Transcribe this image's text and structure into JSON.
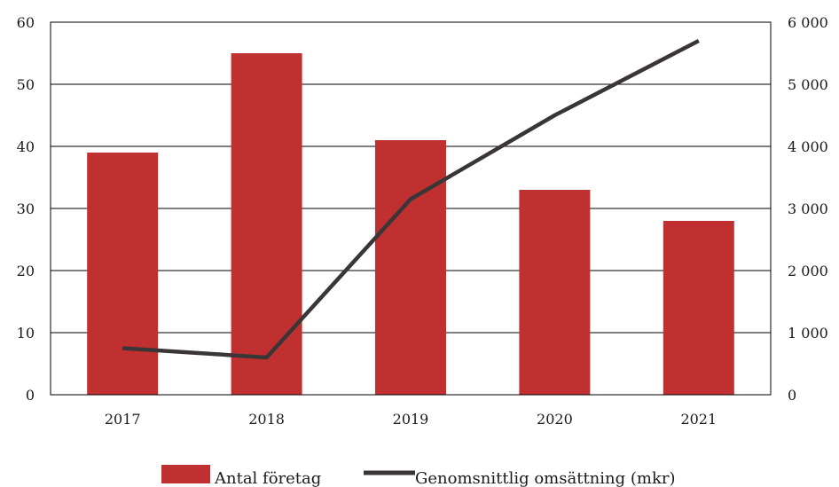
{
  "chart_data": {
    "type": "bar",
    "categories": [
      "2017",
      "2018",
      "2019",
      "2020",
      "2021"
    ],
    "series": [
      {
        "name": "Antal företag",
        "type": "bar",
        "axis": "left",
        "values": [
          39,
          55,
          41,
          33,
          28
        ]
      },
      {
        "name": "Genomsnittlig omsättning (mkr)",
        "type": "line",
        "axis": "right",
        "values": [
          750,
          600,
          3150,
          4500,
          5700
        ]
      }
    ],
    "y_left": {
      "ylim": [
        0,
        60
      ],
      "ticks": [
        "0",
        "10",
        "20",
        "30",
        "40",
        "50",
        "60"
      ],
      "tick_values": [
        0,
        10,
        20,
        30,
        40,
        50,
        60
      ]
    },
    "y_right": {
      "ylim": [
        0,
        6000
      ],
      "ticks": [
        "0",
        "1 000",
        "2 000",
        "3 000",
        "4 000",
        "5 000",
        "6 000"
      ],
      "tick_values": [
        0,
        1000,
        2000,
        3000,
        4000,
        5000,
        6000
      ]
    },
    "grid": true,
    "legend_position": "bottom",
    "colors": {
      "bar": "#c03030",
      "line": "#3a3638",
      "grid": "#000000"
    }
  }
}
